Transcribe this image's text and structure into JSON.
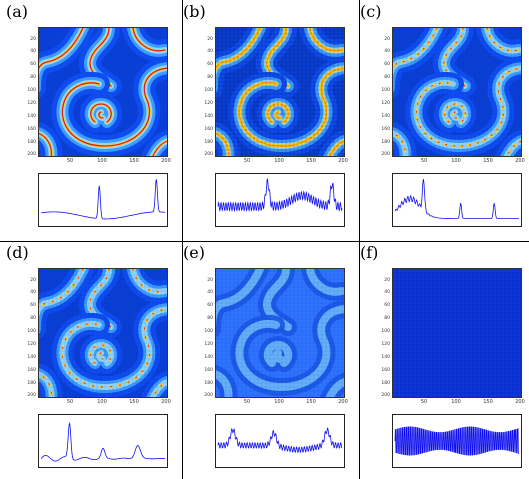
{
  "figure": {
    "panels": [
      {
        "label": "(a)",
        "style": "fringe",
        "waveform": "a"
      },
      {
        "label": "(b)",
        "style": "yellow-mesh",
        "waveform": "b"
      },
      {
        "label": "(c)",
        "style": "broken",
        "waveform": "c"
      },
      {
        "label": "(d)",
        "style": "broken2",
        "waveform": "d"
      },
      {
        "label": "(e)",
        "style": "faint",
        "waveform": "e"
      },
      {
        "label": "(f)",
        "style": "uniform",
        "waveform": "f"
      }
    ],
    "y_ticks": [
      "20",
      "40",
      "60",
      "80",
      "100",
      "120",
      "140",
      "160",
      "180",
      "200"
    ],
    "x_ticks": [
      "50",
      "100",
      "150",
      "200"
    ]
  },
  "colors": {
    "background": "#0a3fd6",
    "wave_core": "#e8f0ff",
    "wave_mid": "#3c9cff",
    "fringe_outer": "#ffd21a",
    "fringe_inner": "#d81e1e",
    "trace_line": "#1010ee"
  }
}
